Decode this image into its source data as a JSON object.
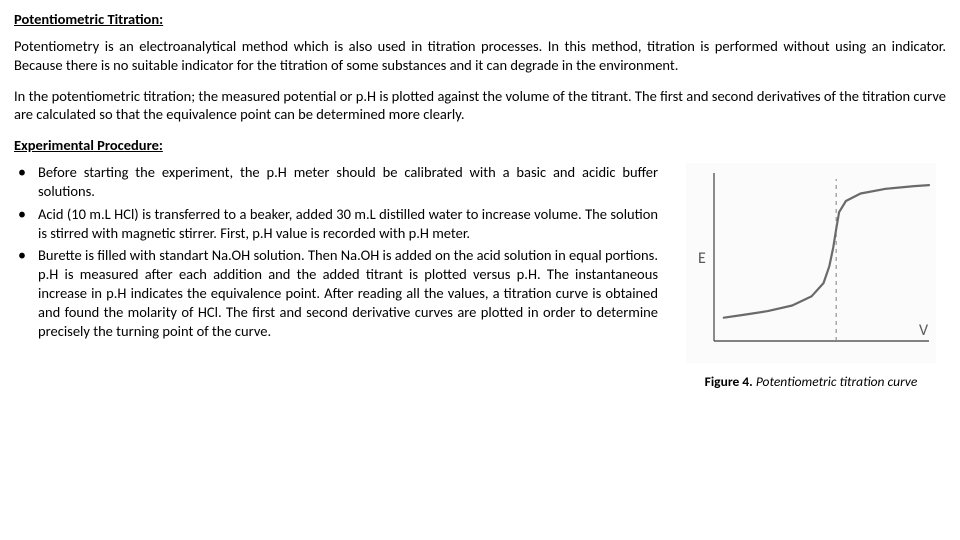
{
  "title1": "Potentiometric Titration:",
  "para1": "Potentiometry is an electroanalytical method which is also used in titration processes. In this method, titration is performed without using an indicator. Because there is no suitable indicator for the titration of some substances and it can degrade in the environment.",
  "para2": "In the potentiometric titration; the measured potential or p.H is plotted against the volume of the titrant. The first and second derivatives of the titration curve are calculated so that the equivalence point can be determined more clearly.",
  "title2": "Experimental Procedure:",
  "bullets": [
    "Before starting the experiment, the p.H meter should be calibrated with a basic and acidic buffer solutions.",
    "Acid (10 m.L HCl) is transferred to a beaker, added 30 m.L distilled water to increase volume. The solution is stirred with magnetic stirrer. First, p.H value is recorded with p.H meter.",
    "Burette is filled with standart Na.OH solution. Then Na.OH is added on the acid solution in equal portions. p.H is measured after each addition and the added titrant is plotted versus p.H. The instantaneous increase in p.H indicates the equivalence point. After reading all the values, a titration curve is obtained and found the molarity of HCl. The first and second derivative curves are plotted in order to determine precisely the turning point of the curve."
  ],
  "figure": {
    "caption_bold": "Figure 4.",
    "caption_italic": " Potentiometric titration curve",
    "y_label": "E",
    "x_label": "V",
    "axis_color": "#5a5a5a",
    "curve_color": "#6a6a6a",
    "dash_color": "#808080",
    "bg": "#fbfbfb",
    "label_color": "#5a5a5a",
    "label_fontsize": 16,
    "curve_width": 2.2,
    "axis_width": 1.4,
    "xlim": [
      0,
      220
    ],
    "ylim": [
      0,
      180
    ],
    "equivalence_x": 125,
    "curve_points": [
      [
        10,
        155
      ],
      [
        30,
        152
      ],
      [
        55,
        148
      ],
      [
        80,
        142
      ],
      [
        100,
        132
      ],
      [
        112,
        118
      ],
      [
        118,
        100
      ],
      [
        122,
        80
      ],
      [
        125,
        60
      ],
      [
        128,
        42
      ],
      [
        135,
        30
      ],
      [
        150,
        22
      ],
      [
        175,
        17
      ],
      [
        205,
        14
      ],
      [
        220,
        13
      ]
    ]
  }
}
